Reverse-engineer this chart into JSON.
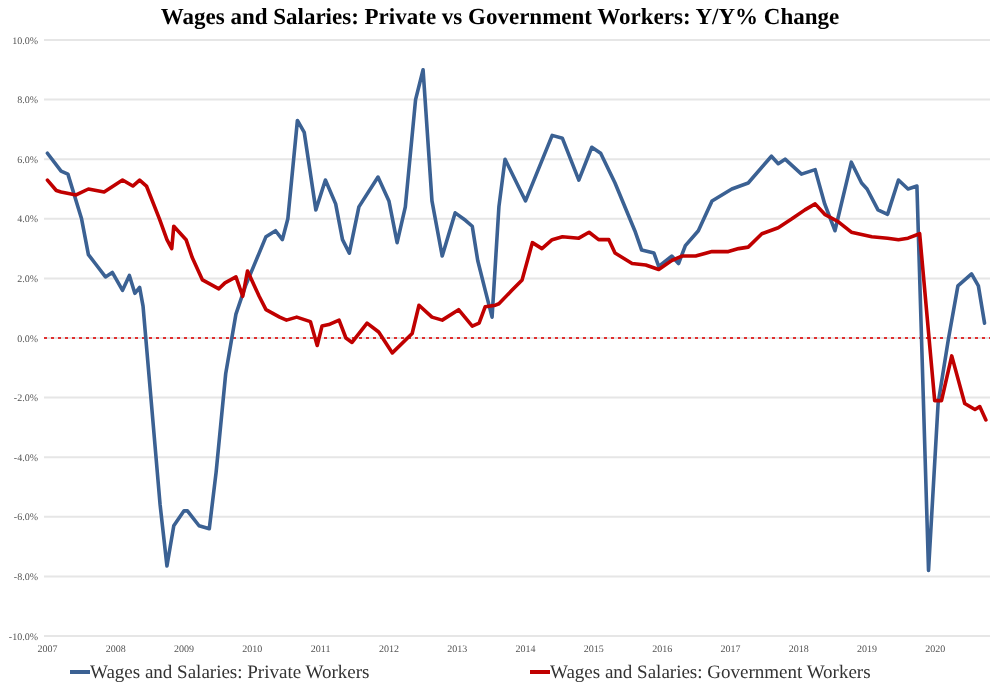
{
  "chart_data": {
    "type": "line",
    "title": "Wages and Salaries: Private vs Government Workers: Y/Y% Change",
    "xlim": [
      2006.95,
      2020.8
    ],
    "xticks": [
      2007,
      2008,
      2009,
      2010,
      2011,
      2012,
      2013,
      2014,
      2015,
      2016,
      2017,
      2018,
      2019,
      2020
    ],
    "ylim": [
      -10,
      10
    ],
    "yticks": [
      {
        "value": -10,
        "label": "-10.0%"
      },
      {
        "value": -8,
        "label": "-8.0%"
      },
      {
        "value": -6,
        "label": "-6.0%"
      },
      {
        "value": -4,
        "label": "-4.0%"
      },
      {
        "value": -2,
        "label": "-2.0%"
      },
      {
        "value": 0,
        "label": "0.0%"
      },
      {
        "value": 2,
        "label": "2.0%"
      },
      {
        "value": 4,
        "label": "4.0%"
      },
      {
        "value": 6,
        "label": "6.0%"
      },
      {
        "value": 8,
        "label": "8.0%"
      },
      {
        "value": 10,
        "label": "10.0%"
      }
    ],
    "grid": "y",
    "legend": "bottom",
    "line_style": "solid",
    "ref_lines": [
      {
        "axis": "y",
        "value": 0,
        "color": "#e03030",
        "line_style": "dotted"
      }
    ],
    "series": [
      {
        "name": "Wages and Salaries: Private Workers",
        "color": "#3b6193",
        "x": [
          2007.0,
          2007.2,
          2007.3,
          2007.5,
          2007.6,
          2007.7,
          2007.85,
          2007.95,
          2008.1,
          2008.2,
          2008.28,
          2008.35,
          2008.4,
          2008.5,
          2008.65,
          2008.75,
          2008.85,
          2009.0,
          2009.05,
          2009.22,
          2009.37,
          2009.47,
          2009.61,
          2009.76,
          2009.9,
          2010.1,
          2010.2,
          2010.34,
          2010.44,
          2010.52,
          2010.66,
          2010.76,
          2010.93,
          2011.07,
          2011.22,
          2011.32,
          2011.42,
          2011.56,
          2011.84,
          2012.0,
          2012.12,
          2012.24,
          2012.39,
          2012.5,
          2012.63,
          2012.78,
          2012.97,
          2013.12,
          2013.22,
          2013.3,
          2013.41,
          2013.51,
          2013.61,
          2013.7,
          2014.0,
          2014.39,
          2014.54,
          2014.78,
          2014.97,
          2015.1,
          2015.31,
          2015.6,
          2015.7,
          2015.88,
          2015.95,
          2016.14,
          2016.24,
          2016.34,
          2016.53,
          2016.73,
          2017.02,
          2017.26,
          2017.6,
          2017.7,
          2017.8,
          2018.04,
          2018.24,
          2018.38,
          2018.53,
          2018.77,
          2018.92,
          2019.0,
          2019.16,
          2019.3,
          2019.46,
          2019.6,
          2019.73,
          2019.9,
          2020.04,
          2020.19,
          2020.33,
          2020.43,
          2020.53,
          2020.63,
          2020.72
        ],
        "values": [
          6.2,
          5.6,
          5.5,
          4.0,
          2.8,
          2.5,
          2.05,
          2.2,
          1.6,
          2.1,
          1.5,
          1.7,
          1.07,
          -1.6,
          -5.6,
          -7.65,
          -6.3,
          -5.8,
          -5.8,
          -6.3,
          -6.4,
          -4.5,
          -1.2,
          0.8,
          1.75,
          2.85,
          3.4,
          3.6,
          3.3,
          4.0,
          7.3,
          6.9,
          4.3,
          5.3,
          4.5,
          3.3,
          2.85,
          4.4,
          5.4,
          4.6,
          3.2,
          4.4,
          8.0,
          9.0,
          4.6,
          2.75,
          4.2,
          3.95,
          3.75,
          2.6,
          1.6,
          0.7,
          4.4,
          6.0,
          4.6,
          6.8,
          6.7,
          5.3,
          6.4,
          6.2,
          5.2,
          3.6,
          2.95,
          2.85,
          2.4,
          2.75,
          2.5,
          3.1,
          3.6,
          4.6,
          5.0,
          5.2,
          6.1,
          5.85,
          6.0,
          5.5,
          5.65,
          4.5,
          3.6,
          5.9,
          5.2,
          5.0,
          4.3,
          4.15,
          5.3,
          5.0,
          5.1,
          -7.8,
          -2.2,
          -0.05,
          1.75,
          1.95,
          2.15,
          1.75,
          0.5
        ]
      },
      {
        "name": "Wages and Salaries: Government Workers",
        "color": "#c00000",
        "x": [
          2007.0,
          2007.13,
          2007.2,
          2007.42,
          2007.6,
          2007.83,
          2008.1,
          2008.25,
          2008.35,
          2008.45,
          2008.64,
          2008.75,
          2008.82,
          2008.85,
          2009.03,
          2009.12,
          2009.27,
          2009.51,
          2009.6,
          2009.76,
          2009.86,
          2009.93,
          2010.1,
          2010.2,
          2010.4,
          2010.5,
          2010.65,
          2010.85,
          2010.95,
          2011.02,
          2011.12,
          2011.27,
          2011.37,
          2011.46,
          2011.68,
          2011.85,
          2012.05,
          2012.34,
          2012.44,
          2012.63,
          2012.78,
          2013.02,
          2013.22,
          2013.32,
          2013.41,
          2013.56,
          2013.61,
          2013.8,
          2013.95,
          2014.1,
          2014.24,
          2014.39,
          2014.54,
          2014.78,
          2014.93,
          2015.07,
          2015.22,
          2015.31,
          2015.56,
          2015.76,
          2015.95,
          2016.14,
          2016.29,
          2016.49,
          2016.73,
          2016.97,
          2017.12,
          2017.26,
          2017.46,
          2017.7,
          2017.9,
          2018.09,
          2018.24,
          2018.38,
          2018.58,
          2018.77,
          2019.07,
          2019.3,
          2019.46,
          2019.6,
          2019.77,
          2019.99,
          2020.09,
          2020.24,
          2020.43,
          2020.58,
          2020.65,
          2020.74
        ],
        "values": [
          5.3,
          4.95,
          4.9,
          4.8,
          5.0,
          4.9,
          5.3,
          5.1,
          5.3,
          5.1,
          4.0,
          3.3,
          3.0,
          3.75,
          3.3,
          2.7,
          1.95,
          1.65,
          1.85,
          2.05,
          1.4,
          2.25,
          1.4,
          0.95,
          0.7,
          0.6,
          0.7,
          0.55,
          -0.25,
          0.4,
          0.45,
          0.6,
          0.0,
          -0.15,
          0.5,
          0.2,
          -0.5,
          0.15,
          1.1,
          0.7,
          0.6,
          0.95,
          0.4,
          0.5,
          1.05,
          1.1,
          1.15,
          1.6,
          1.95,
          3.2,
          3.0,
          3.3,
          3.4,
          3.35,
          3.55,
          3.3,
          3.3,
          2.85,
          2.5,
          2.45,
          2.3,
          2.6,
          2.75,
          2.75,
          2.9,
          2.9,
          3.0,
          3.05,
          3.5,
          3.7,
          4.0,
          4.3,
          4.5,
          4.15,
          3.9,
          3.55,
          3.4,
          3.35,
          3.3,
          3.35,
          3.5,
          -2.1,
          -2.1,
          -0.6,
          -2.2,
          -2.4,
          -2.3,
          -2.75
        ]
      }
    ]
  }
}
